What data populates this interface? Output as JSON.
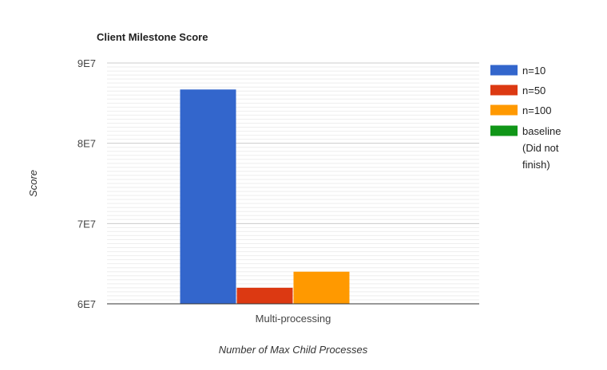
{
  "chart_data": {
    "type": "bar",
    "title": "Client Milestone Score",
    "xlabel": "Number of Max Child Processes",
    "ylabel": "Score",
    "categories": [
      "Multi-processing"
    ],
    "ylim": [
      60000000,
      90000000
    ],
    "yticks": [
      60000000,
      70000000,
      80000000,
      90000000
    ],
    "ytick_labels": [
      "6E7",
      "7E7",
      "8E7",
      "9E7"
    ],
    "grid": true,
    "legend_position": "right",
    "series": [
      {
        "name": "n=10",
        "color": "#3366cc",
        "values": [
          86700000
        ]
      },
      {
        "name": "n=50",
        "color": "#dc3912",
        "values": [
          62000000
        ]
      },
      {
        "name": "n=100",
        "color": "#ff9900",
        "values": [
          64000000
        ]
      },
      {
        "name": "baseline (Did not finish)",
        "color": "#109618",
        "values": [
          null
        ]
      }
    ],
    "legend_lines": [
      [
        "n=10"
      ],
      [
        "n=50"
      ],
      [
        "n=100"
      ],
      [
        "baseline",
        "(Did not",
        "finish)"
      ]
    ]
  }
}
